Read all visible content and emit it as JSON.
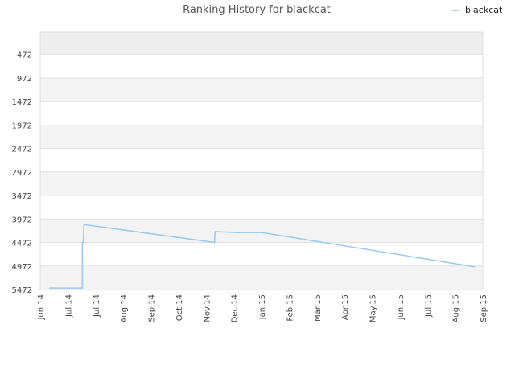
{
  "chart_data": {
    "type": "line",
    "title": "Ranking History for blackcat",
    "legend": {
      "position": "top-right",
      "entries": [
        "blackcat"
      ]
    },
    "series_color": "#99c8f0",
    "band_colors": [
      "#eeeeee",
      "#ffffff",
      "#f3f3f3"
    ],
    "grid": true,
    "y_inverted": true,
    "ylim": [
      5472,
      0
    ],
    "y_ticks": [
      472,
      972,
      1472,
      1972,
      2472,
      2972,
      3472,
      3972,
      4472,
      4972,
      5472
    ],
    "y_tick_labels": [
      "472",
      "972",
      "1472",
      "1972",
      "2472",
      "2972",
      "3472",
      "3972",
      "4472",
      "4972",
      "5472"
    ],
    "x_ticks": [
      "Jun.14",
      "Jul.14",
      "Jul.14",
      "Aug.14",
      "Sep.14",
      "Oct.14",
      "Nov.14",
      "Dec.14",
      "Jan.15",
      "Feb.15",
      "Mar.15",
      "Apr.15",
      "May.15",
      "Jun.15",
      "Jul.15",
      "Aug.15",
      "Sep.15"
    ],
    "series": [
      {
        "name": "blackcat",
        "x": [
          0.35,
          1.52,
          1.52,
          1.56,
          1.58,
          6.3,
          6.32,
          7.1,
          8.0,
          15.7
        ],
        "y": [
          5440,
          5440,
          4480,
          4470,
          4090,
          4472,
          4240,
          4260,
          4260,
          4990
        ]
      }
    ]
  }
}
